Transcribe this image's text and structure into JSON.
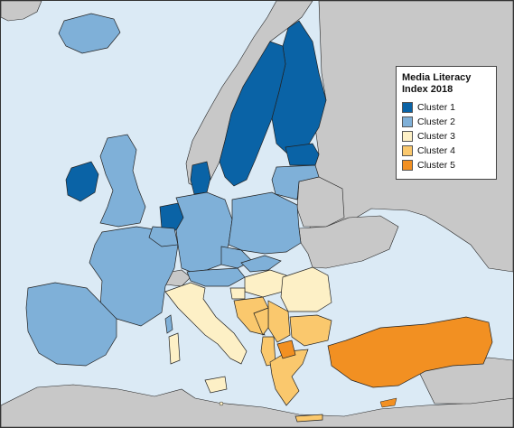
{
  "legend": {
    "title_line1": "Media Literacy",
    "title_line2": "Index 2018",
    "items": [
      {
        "label": "Cluster 1",
        "color": "#0a63a6"
      },
      {
        "label": "Cluster 2",
        "color": "#7fb0d8"
      },
      {
        "label": "Cluster 3",
        "color": "#fdf0c6"
      },
      {
        "label": "Cluster 4",
        "color": "#fac86d"
      },
      {
        "label": "Cluster 5",
        "color": "#f29022"
      }
    ]
  },
  "colors": {
    "sea": "#dbeaf5",
    "non_member_land": "#c8c8c8",
    "border": "#222222"
  }
}
